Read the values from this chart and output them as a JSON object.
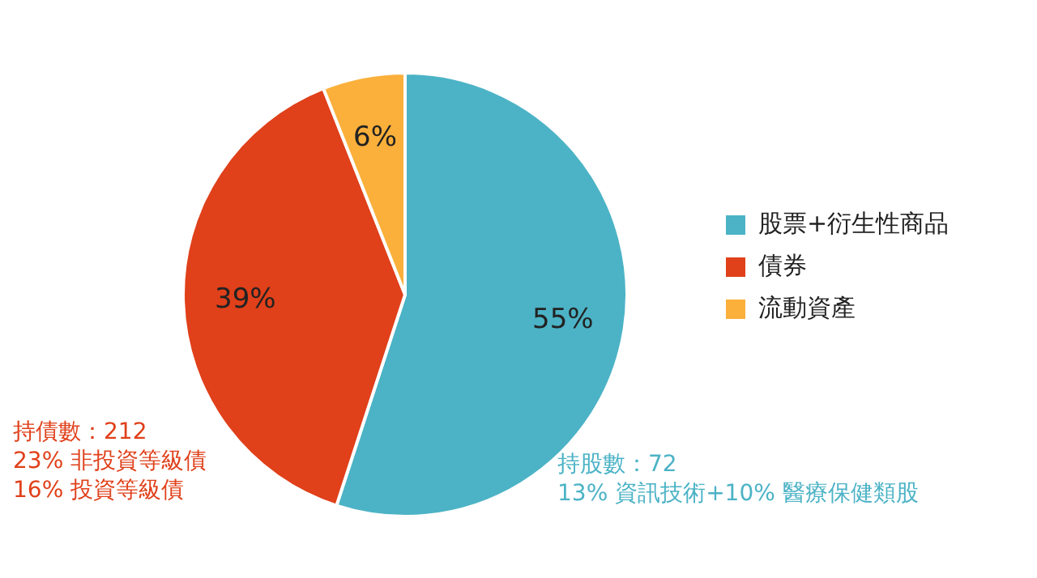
{
  "chart_data": {
    "type": "pie",
    "categories": [
      "股票+衍生性商品",
      "債券",
      "流動資產"
    ],
    "values": [
      55,
      39,
      6
    ],
    "colors": [
      "#4cb3c6",
      "#e0401a",
      "#fbb03b"
    ],
    "value_labels": [
      "55%",
      "39%",
      "6%"
    ],
    "legend": "right",
    "annotations": [
      "持債數：212",
      "23% 非投資等級債",
      "16% 投資等級債",
      "持股數：72",
      "13% 資訊技術+10% 醫療保健類股"
    ]
  }
}
